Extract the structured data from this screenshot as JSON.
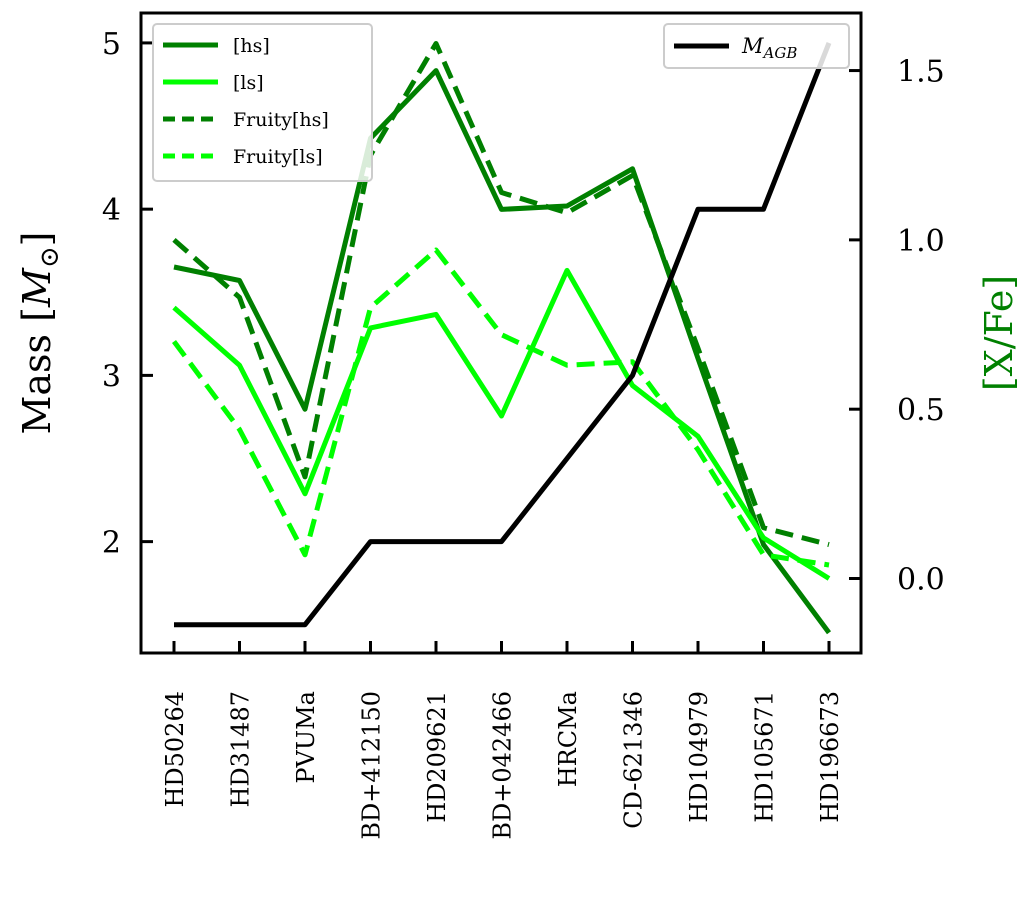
{
  "chart_data": {
    "type": "line",
    "categories": [
      "HD50264",
      "HD31487",
      "PVUMa",
      "BD+412150",
      "HD209621",
      "BD+042466",
      "HRCMa",
      "CD-621346",
      "HD104979",
      "HD105671",
      "HD196673"
    ],
    "y_left": {
      "label": "Mass",
      "unit": "M⊙",
      "label_prefix": "Mass [",
      "label_symbol": "M",
      "label_subscript": "⊙",
      "label_suffix": "]",
      "ticks": [
        2,
        3,
        4,
        5
      ],
      "tick_labels": [
        "2",
        "3",
        "4",
        "5"
      ],
      "ylim": [
        1.33,
        5.18
      ]
    },
    "y_right": {
      "label": "[X/Fe]",
      "ticks": [
        0.0,
        0.5,
        1.0,
        1.5
      ],
      "tick_labels": [
        "0.0",
        "0.5",
        "1.0",
        "1.5"
      ],
      "ylim": [
        -0.22,
        1.67
      ],
      "color": "#008000"
    },
    "series": [
      {
        "name": "[hs]",
        "axis": "right",
        "color": "#008000",
        "dash": "solid",
        "values": [
          0.92,
          0.88,
          0.5,
          1.3,
          1.5,
          1.09,
          1.1,
          1.21,
          0.65,
          0.1,
          -0.16
        ]
      },
      {
        "name": "[ls]",
        "axis": "right",
        "color": "#00ff00",
        "dash": "solid",
        "values": [
          0.8,
          0.63,
          0.25,
          0.74,
          0.78,
          0.48,
          0.91,
          0.57,
          0.42,
          0.12,
          0.0
        ]
      },
      {
        "name": "Fruity[hs]",
        "axis": "right",
        "color": "#008000",
        "dash": "dashed",
        "values": [
          1.0,
          0.83,
          0.3,
          1.25,
          1.58,
          1.14,
          1.08,
          1.19,
          0.68,
          0.15,
          0.1
        ]
      },
      {
        "name": "Fruity[ls]",
        "axis": "right",
        "color": "#00ff00",
        "dash": "dashed",
        "values": [
          0.7,
          0.44,
          0.07,
          0.8,
          0.97,
          0.72,
          0.63,
          0.64,
          0.38,
          0.07,
          0.04
        ]
      },
      {
        "name": "M_AGB",
        "axis": "left",
        "color": "#000000",
        "dash": "solid",
        "values": [
          1.5,
          1.5,
          1.5,
          2.0,
          2.0,
          2.0,
          2.5,
          3.0,
          4.0,
          4.0,
          5.0
        ]
      }
    ],
    "legend_left": {
      "placement": "top-left",
      "entries": [
        {
          "label": "[hs]",
          "color": "#008000",
          "dash": "solid"
        },
        {
          "label": "[ls]",
          "color": "#00ff00",
          "dash": "solid"
        },
        {
          "label": "Fruity[hs]",
          "color": "#008000",
          "dash": "dashed"
        },
        {
          "label": "Fruity[ls]",
          "color": "#00ff00",
          "dash": "dashed"
        }
      ]
    },
    "legend_right": {
      "placement": "top-right",
      "entries": [
        {
          "label_main": "M",
          "label_sub": "AGB",
          "color": "#000000",
          "dash": "solid"
        }
      ]
    },
    "grid": false
  }
}
